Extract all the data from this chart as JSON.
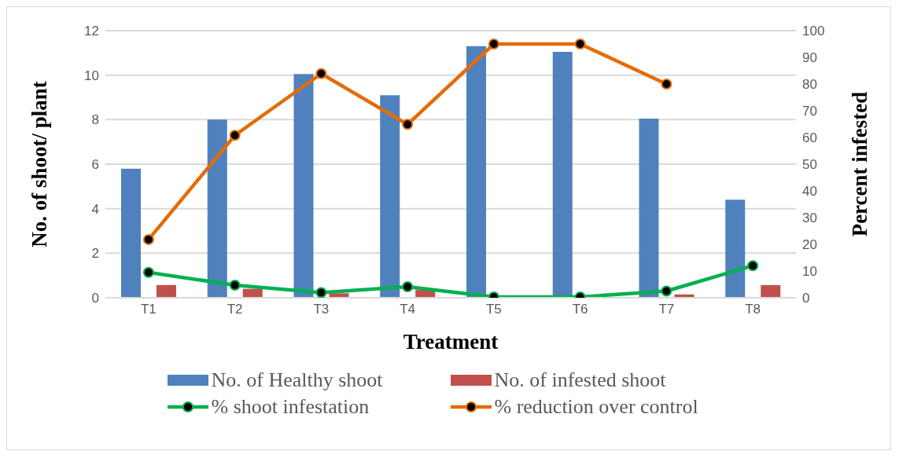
{
  "chart_data": {
    "type": "bar",
    "xlabel": "Treatment",
    "ylabel": "No. of shoot/ plant",
    "y2label": "Percent infested",
    "categories": [
      "T1",
      "T2",
      "T3",
      "T4",
      "T5",
      "T6",
      "T7",
      "T8"
    ],
    "series": [
      {
        "name": "No. of Healthy shoot",
        "color": "#4f81bd",
        "values": [
          5.8,
          8.0,
          10.05,
          9.1,
          11.3,
          11.05,
          8.05,
          4.4
        ]
      },
      {
        "name": "No. of infested shoot",
        "color": "#c0504d",
        "values": [
          0.57,
          0.4,
          0.2,
          0.35,
          0,
          0,
          0.15,
          0.57
        ]
      },
      {
        "name": "% shoot infestation",
        "type": "line",
        "axis": "y2",
        "color": "#00b050",
        "values": [
          9.5,
          4.7,
          1.9,
          4.1,
          0.3,
          0.3,
          2.5,
          12
        ]
      },
      {
        "name": "% reduction over control",
        "type": "line",
        "axis": "y2",
        "color": "#e36c09",
        "values": [
          21.8,
          60.8,
          83.9,
          64.9,
          95,
          95,
          80,
          null
        ]
      }
    ],
    "ylim": [
      0,
      12
    ],
    "yticks": [
      0,
      2,
      4,
      6,
      8,
      10,
      12
    ],
    "y2lim": [
      0,
      100
    ],
    "y2ticks": [
      0,
      10,
      20,
      30,
      40,
      50,
      60,
      70,
      80,
      90,
      100
    ],
    "grid": "y",
    "legend": "bottom",
    "marker": "circle",
    "line_style": "solid"
  }
}
